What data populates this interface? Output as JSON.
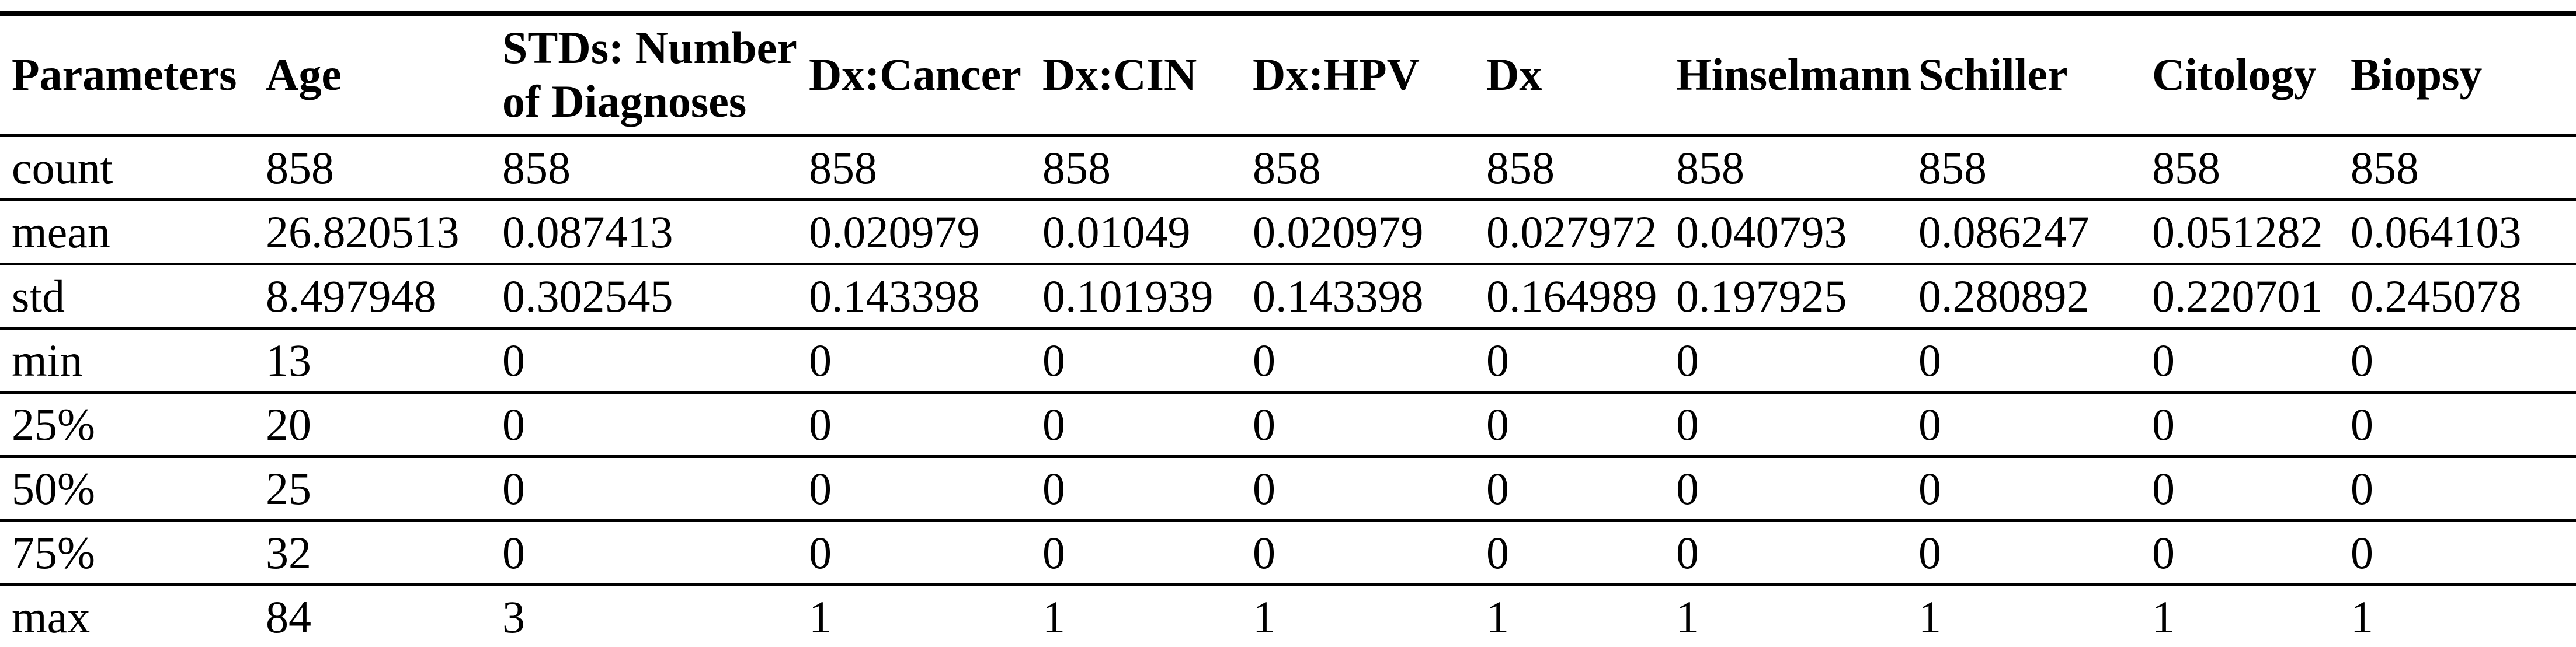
{
  "table": {
    "columns": [
      {
        "label": "Parameters"
      },
      {
        "label": "Age"
      },
      {
        "label": "STDs: Number of Diagnoses"
      },
      {
        "label": "Dx:Cancer"
      },
      {
        "label": "Dx:CIN"
      },
      {
        "label": "Dx:HPV"
      },
      {
        "label": "Dx"
      },
      {
        "label": "Hinselmann"
      },
      {
        "label": "Schiller"
      },
      {
        "label": "Citology"
      },
      {
        "label": "Biopsy"
      }
    ],
    "rows": [
      {
        "label": "count",
        "values": [
          "858",
          "858",
          "858",
          "858",
          "858",
          "858",
          "858",
          "858",
          "858",
          "858"
        ]
      },
      {
        "label": "mean",
        "values": [
          "26.820513",
          "0.087413",
          "0.020979",
          "0.01049",
          "0.020979",
          "0.027972",
          "0.040793",
          "0.086247",
          "0.051282",
          "0.064103"
        ]
      },
      {
        "label": "std",
        "values": [
          "8.497948",
          "0.302545",
          "0.143398",
          "0.101939",
          "0.143398",
          "0.164989",
          "0.197925",
          "0.280892",
          "0.220701",
          "0.245078"
        ]
      },
      {
        "label": "min",
        "values": [
          "13",
          "0",
          "0",
          "0",
          "0",
          "0",
          "0",
          "0",
          "0",
          "0"
        ]
      },
      {
        "label": "25%",
        "values": [
          "20",
          "0",
          "0",
          "0",
          "0",
          "0",
          "0",
          "0",
          "0",
          "0"
        ]
      },
      {
        "label": "50%",
        "values": [
          "25",
          "0",
          "0",
          "0",
          "0",
          "0",
          "0",
          "0",
          "0",
          "0"
        ]
      },
      {
        "label": "75%",
        "values": [
          "32",
          "0",
          "0",
          "0",
          "0",
          "0",
          "0",
          "0",
          "0",
          "0"
        ]
      },
      {
        "label": "max",
        "values": [
          "84",
          "3",
          "1",
          "1",
          "1",
          "1",
          "1",
          "1",
          "1",
          "1"
        ]
      }
    ],
    "text_color": "#000000",
    "rule_color": "#000000",
    "background_color": "#ffffff"
  }
}
